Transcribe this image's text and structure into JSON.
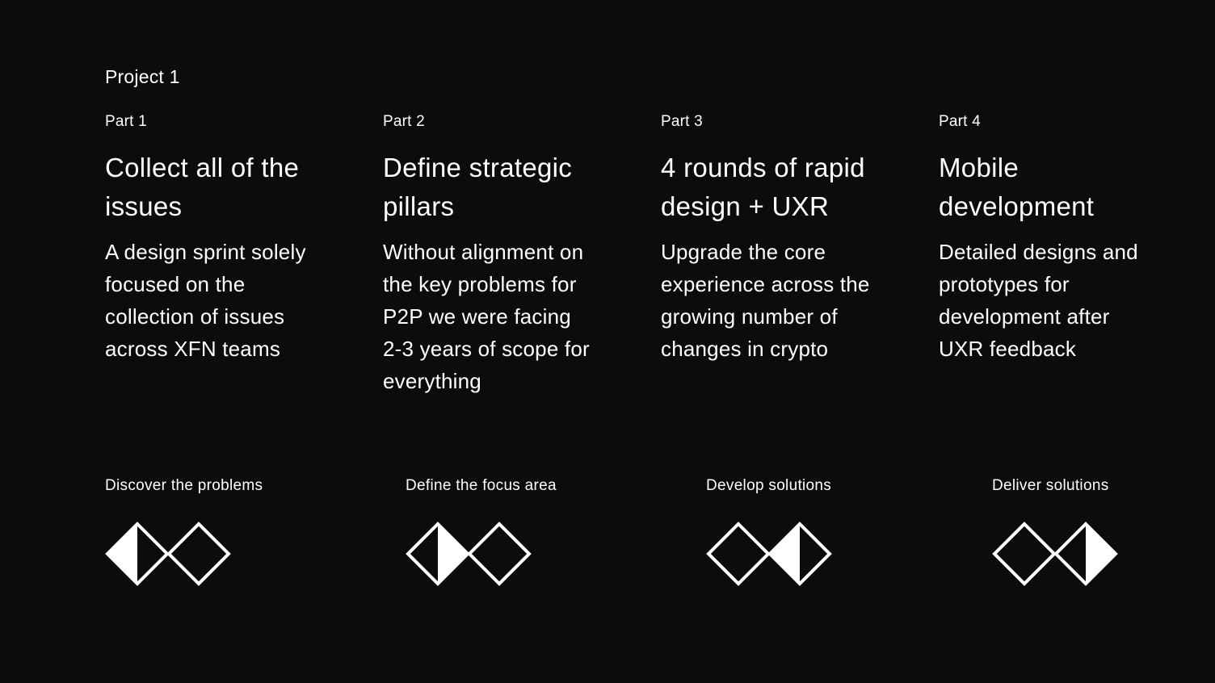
{
  "project": {
    "label": "Project 1"
  },
  "parts": [
    {
      "label": "Part 1",
      "title": "Collect all of the\nissues",
      "description": "A design sprint solely\nfocused on the\ncollection of issues\nacross XFN teams"
    },
    {
      "label": "Part 2",
      "title": "Define strategic\npillars",
      "description": "Without alignment on\nthe key problems for\nP2P we were facing\n2-3 years of scope for\neverything"
    },
    {
      "label": "Part 3",
      "title": "4 rounds of rapid\ndesign + UXR",
      "description": "Upgrade the core\nexperience across the\ngrowing number of\nchanges in crypto"
    },
    {
      "label": "Part 4",
      "title": "Mobile\ndevelopment",
      "description": "Detailed designs and\nprototypes for\ndevelopment after\nUXR feedback"
    }
  ],
  "phases": [
    {
      "label": "Discover the problems",
      "icon": "double-diamond-discover-icon",
      "active_diamond": 1,
      "active_half": "left"
    },
    {
      "label": "Define the focus area",
      "icon": "double-diamond-define-icon",
      "active_diamond": 1,
      "active_half": "right"
    },
    {
      "label": "Develop solutions",
      "icon": "double-diamond-develop-icon",
      "active_diamond": 2,
      "active_half": "left"
    },
    {
      "label": "Deliver solutions",
      "icon": "double-diamond-deliver-icon",
      "active_diamond": 2,
      "active_half": "right"
    }
  ],
  "colors": {
    "background": "#0b0c0e",
    "foreground": "#ffffff"
  }
}
